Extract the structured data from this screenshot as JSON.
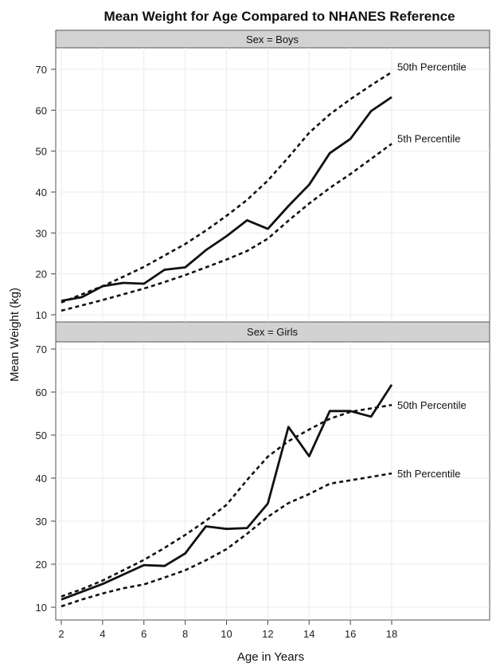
{
  "chart_data": {
    "type": "line",
    "title": "Mean Weight for Age Compared to NHANES Reference",
    "xlabel": "Age in Years",
    "ylabel": "Mean Weight (kg)",
    "xlim": [
      2,
      18
    ],
    "xticks": [
      2,
      4,
      6,
      8,
      10,
      12,
      14,
      16,
      18
    ],
    "grid": true,
    "panels": [
      {
        "label": "Sex = Boys",
        "ylim": [
          9,
          75
        ],
        "yticks": [
          10,
          20,
          30,
          40,
          50,
          60,
          70
        ],
        "series": [
          {
            "style": "solid",
            "x": [
              2,
              3,
              4,
              5,
              6,
              7,
              8,
              9,
              10,
              11,
              12,
              13,
              14,
              15,
              16,
              17,
              18
            ],
            "values": [
              13.4,
              14.3,
              17.0,
              17.8,
              17.6,
              21.0,
              21.6,
              25.8,
              29.2,
              33.1,
              31.0,
              36.6,
              41.8,
              49.5,
              53.0,
              59.8,
              63.2
            ]
          },
          {
            "name": "50th Percentile",
            "style": "dashed",
            "x": [
              2,
              3,
              4,
              5,
              6,
              7,
              8,
              9,
              10,
              11,
              12,
              13,
              14,
              15,
              16,
              17,
              18
            ],
            "values": [
              13.0,
              15.0,
              17.0,
              19.3,
              21.7,
              24.5,
              27.3,
              30.6,
              34.2,
              38.1,
              42.8,
              48.5,
              54.5,
              59.0,
              62.7,
              66.1,
              69.3
            ]
          },
          {
            "name": "5th Percentile",
            "style": "dashed",
            "x": [
              2,
              3,
              4,
              5,
              6,
              7,
              8,
              9,
              10,
              11,
              12,
              13,
              14,
              15,
              16,
              17,
              18
            ],
            "values": [
              11.0,
              12.3,
              13.6,
              15.0,
              16.4,
              18.0,
              19.7,
              21.6,
              23.5,
              25.6,
              28.6,
              33.0,
              37.2,
              41.0,
              44.4,
              48.1,
              51.8
            ]
          }
        ]
      },
      {
        "label": "Sex = Girls",
        "ylim": [
          8,
          72
        ],
        "yticks": [
          10,
          20,
          30,
          40,
          50,
          60,
          70
        ],
        "series": [
          {
            "style": "solid",
            "x": [
              2,
              3,
              4,
              5,
              6,
              7,
              8,
              9,
              10,
              11,
              12,
              13,
              14,
              15,
              16,
              17,
              18
            ],
            "values": [
              11.8,
              13.6,
              15.4,
              17.6,
              19.8,
              19.6,
              22.5,
              28.8,
              28.2,
              28.4,
              34.1,
              51.9,
              45.1,
              55.6,
              55.6,
              54.3,
              61.7
            ]
          },
          {
            "name": "50th Percentile",
            "style": "dashed",
            "x": [
              2,
              3,
              4,
              5,
              6,
              7,
              8,
              9,
              10,
              11,
              12,
              13,
              14,
              15,
              16,
              17,
              18
            ],
            "values": [
              12.5,
              14.2,
              16.2,
              18.6,
              21.0,
              23.8,
              26.8,
              30.1,
              33.8,
              39.6,
              45.0,
              48.6,
              51.3,
              53.8,
              55.4,
              56.2,
              57.0
            ]
          },
          {
            "name": "5th Percentile",
            "style": "dashed",
            "x": [
              2,
              3,
              4,
              5,
              6,
              7,
              8,
              9,
              10,
              11,
              12,
              13,
              14,
              15,
              16,
              17,
              18
            ],
            "values": [
              10.2,
              11.8,
              13.2,
              14.4,
              15.3,
              16.9,
              18.6,
              20.9,
              23.5,
              27.1,
              31.0,
              34.2,
              36.3,
              38.7,
              39.5,
              40.3,
              41.1
            ]
          }
        ]
      }
    ]
  }
}
